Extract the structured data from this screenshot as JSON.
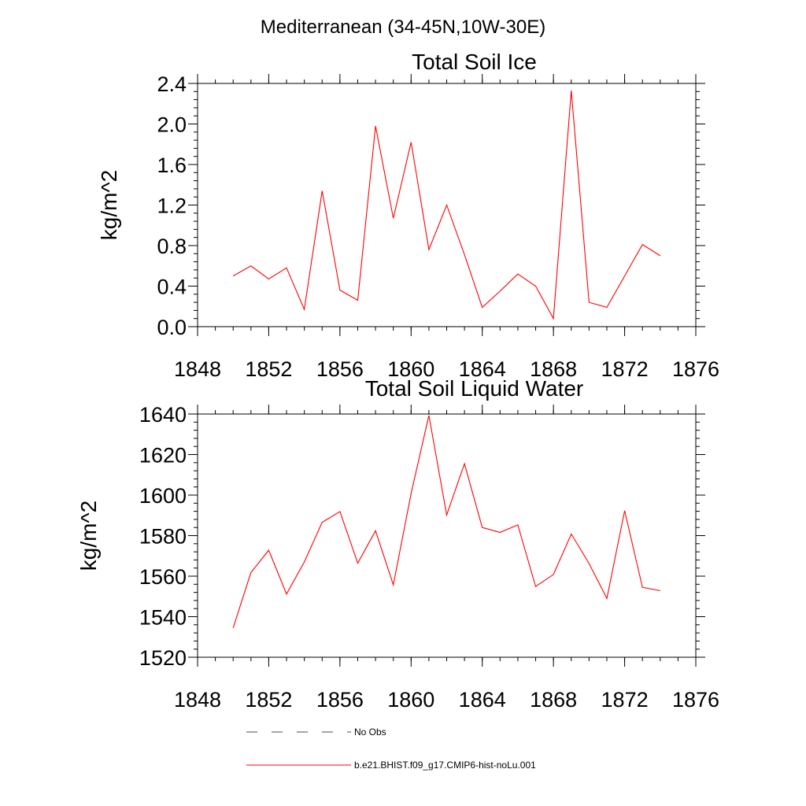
{
  "figure": {
    "main_title": "Mediterranean (34-45N,10W-30E)"
  },
  "chart_data": [
    {
      "type": "line",
      "title": "Total Soil Ice",
      "xlabel": "",
      "ylabel": "kg/m^2",
      "xlim": [
        1848,
        1876
      ],
      "ylim": [
        0.0,
        2.4
      ],
      "x_ticks": [
        "1848",
        "1852",
        "1856",
        "1860",
        "1864",
        "1868",
        "1872",
        "1876"
      ],
      "y_ticks": [
        "0.0",
        "0.4",
        "0.8",
        "1.2",
        "1.6",
        "2.0",
        "2.4"
      ],
      "x_tick_values": [
        1848,
        1852,
        1856,
        1860,
        1864,
        1868,
        1872,
        1876
      ],
      "y_tick_values": [
        0.0,
        0.4,
        0.8,
        1.2,
        1.6,
        2.0,
        2.4
      ],
      "grid": false,
      "series": [
        {
          "name": "b.e21.BHIST.f09_g17.CMIP6-hist-noLu.001",
          "color": "#ff0000",
          "x": [
            1850,
            1851,
            1852,
            1853,
            1854,
            1855,
            1856,
            1857,
            1858,
            1859,
            1860,
            1861,
            1862,
            1863,
            1864,
            1865,
            1866,
            1867,
            1868,
            1869,
            1870,
            1871,
            1872,
            1873,
            1874
          ],
          "values": [
            0.5,
            0.6,
            0.47,
            0.58,
            0.17,
            1.34,
            0.36,
            0.26,
            1.98,
            1.07,
            1.82,
            0.76,
            1.2,
            0.71,
            0.19,
            0.35,
            0.52,
            0.4,
            0.08,
            2.33,
            0.24,
            0.19,
            0.5,
            0.81,
            0.7
          ]
        }
      ]
    },
    {
      "type": "line",
      "title": "Total Soil Liquid Water",
      "xlabel": "",
      "ylabel": "kg/m^2",
      "xlim": [
        1848,
        1876
      ],
      "ylim": [
        1520,
        1640
      ],
      "x_ticks": [
        "1848",
        "1852",
        "1856",
        "1860",
        "1864",
        "1868",
        "1872",
        "1876"
      ],
      "y_ticks": [
        "1520",
        "1540",
        "1560",
        "1580",
        "1600",
        "1620",
        "1640"
      ],
      "x_tick_values": [
        1848,
        1852,
        1856,
        1860,
        1864,
        1868,
        1872,
        1876
      ],
      "y_tick_values": [
        1520,
        1540,
        1560,
        1580,
        1600,
        1620,
        1640
      ],
      "grid": false,
      "series": [
        {
          "name": "b.e21.BHIST.f09_g17.CMIP6-hist-noLu.001",
          "color": "#ff0000",
          "x": [
            1850,
            1851,
            1852,
            1853,
            1854,
            1855,
            1856,
            1857,
            1858,
            1859,
            1860,
            1861,
            1862,
            1863,
            1864,
            1865,
            1866,
            1867,
            1868,
            1869,
            1870,
            1871,
            1872,
            1873,
            1874
          ],
          "values": [
            1534.5,
            1561.8,
            1572.8,
            1551.2,
            1567.0,
            1586.6,
            1591.9,
            1566.4,
            1582.4,
            1555.7,
            1600.8,
            1639.3,
            1590.2,
            1615.5,
            1584.0,
            1581.6,
            1585.3,
            1554.9,
            1560.8,
            1580.8,
            1566.2,
            1549.0,
            1592.3,
            1554.5,
            1552.8
          ]
        }
      ]
    }
  ],
  "legend": {
    "placement": "bottom",
    "items": [
      {
        "label": "No Obs",
        "color": "#4a4a6a",
        "style": "dashed"
      },
      {
        "label": "b.e21.BHIST.f09_g17.CMIP6-hist-noLu.001",
        "color": "#ff0000",
        "style": "solid"
      }
    ]
  }
}
